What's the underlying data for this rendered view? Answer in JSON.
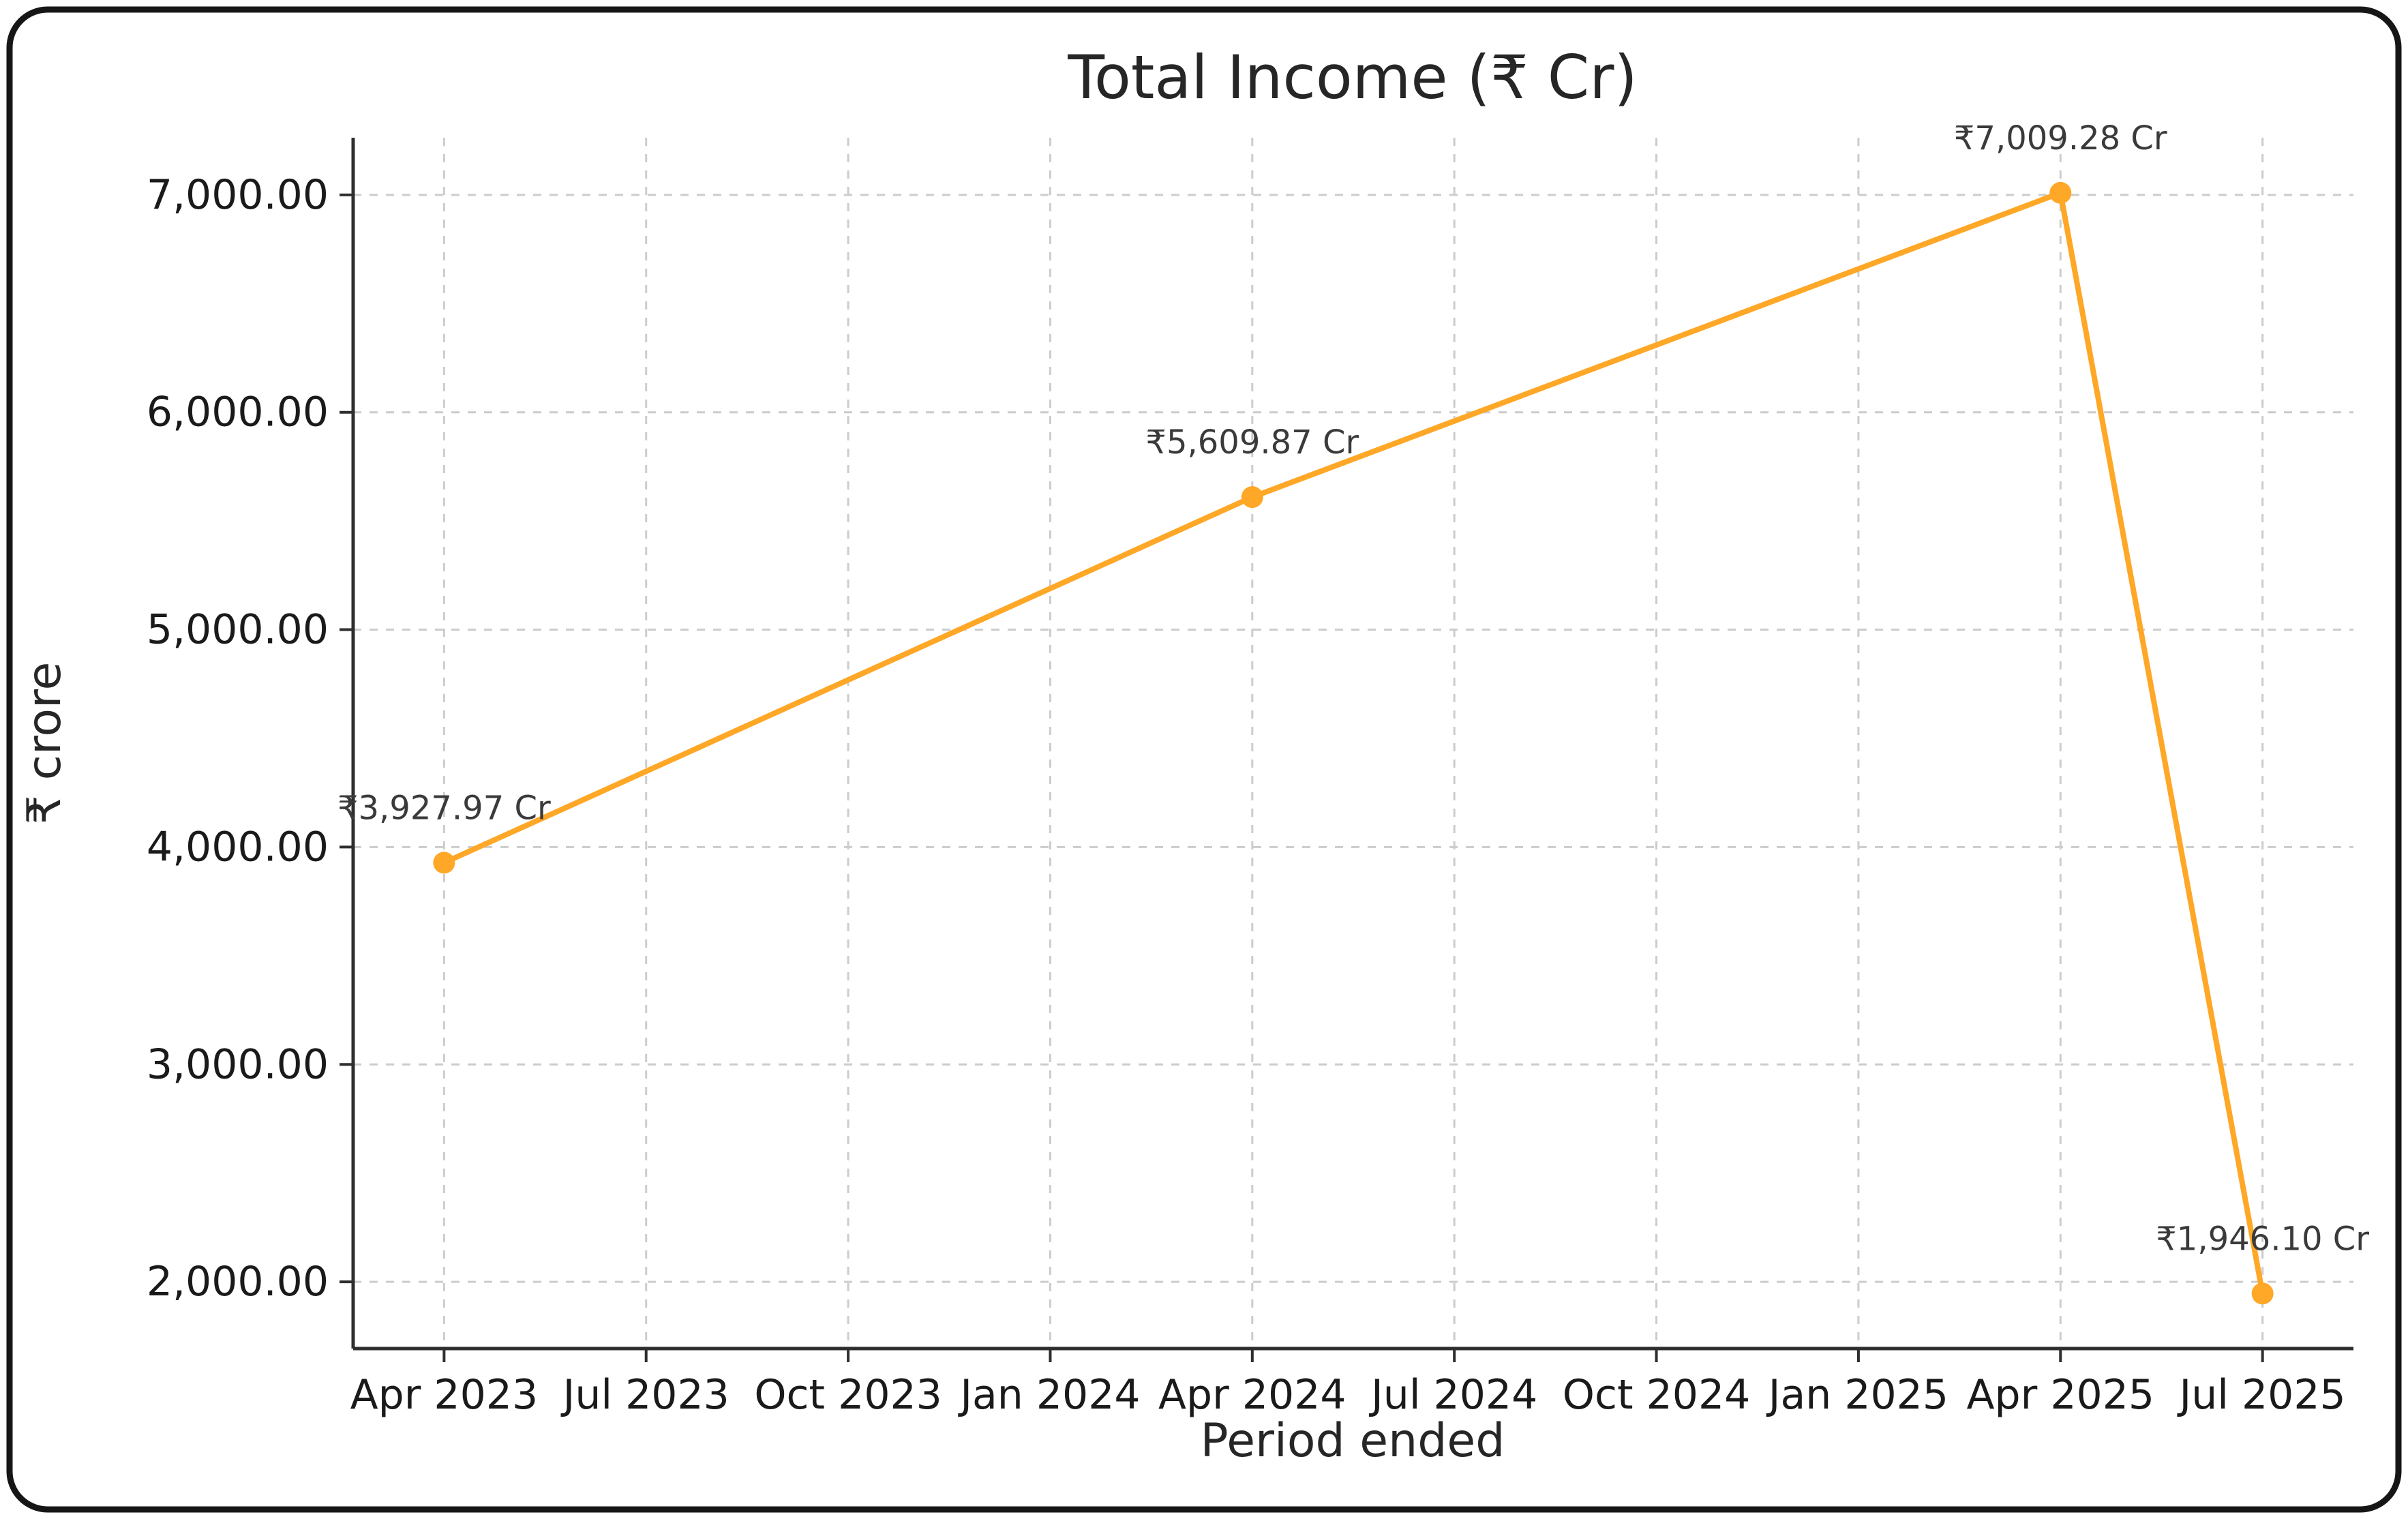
{
  "frame": {
    "border_color": "#161616",
    "background": "#ffffff"
  },
  "chart_data": {
    "type": "line",
    "title": "Total Income (₹ Cr)",
    "xlabel": "Period ended",
    "ylabel": "₹ crore",
    "grid": true,
    "legend_position": "none",
    "line_color": "#FFA726",
    "marker_color": "#FFA726",
    "x_tick_labels": [
      "Apr 2023",
      "Jul 2023",
      "Oct 2023",
      "Jan 2024",
      "Apr 2024",
      "Jul 2024",
      "Oct 2024",
      "Jan 2025",
      "Apr 2025",
      "Jul 2025"
    ],
    "x_tick_positions": [
      0,
      3,
      6,
      9,
      12,
      15,
      18,
      21,
      24,
      27
    ],
    "y_ticks": [
      2000,
      3000,
      4000,
      5000,
      6000,
      7000
    ],
    "y_tick_labels": [
      "2,000.00",
      "3,000.00",
      "4,000.00",
      "5,000.00",
      "6,000.00",
      "7,000.00"
    ],
    "x_domain": [
      -1.35,
      28.35
    ],
    "y_domain": [
      1693,
      7263
    ],
    "series": [
      {
        "name": "Total Income",
        "x": [
          0,
          12,
          24,
          27
        ],
        "x_labels": [
          "Apr 2023",
          "Apr 2024",
          "Apr 2025",
          "Jul 2025"
        ],
        "values": [
          3927.97,
          5609.87,
          7009.28,
          1946.1
        ],
        "point_labels": [
          "₹3,927.97 Cr",
          "₹5,609.87 Cr",
          "₹7,009.28 Cr",
          "₹1,946.10 Cr"
        ]
      }
    ]
  }
}
